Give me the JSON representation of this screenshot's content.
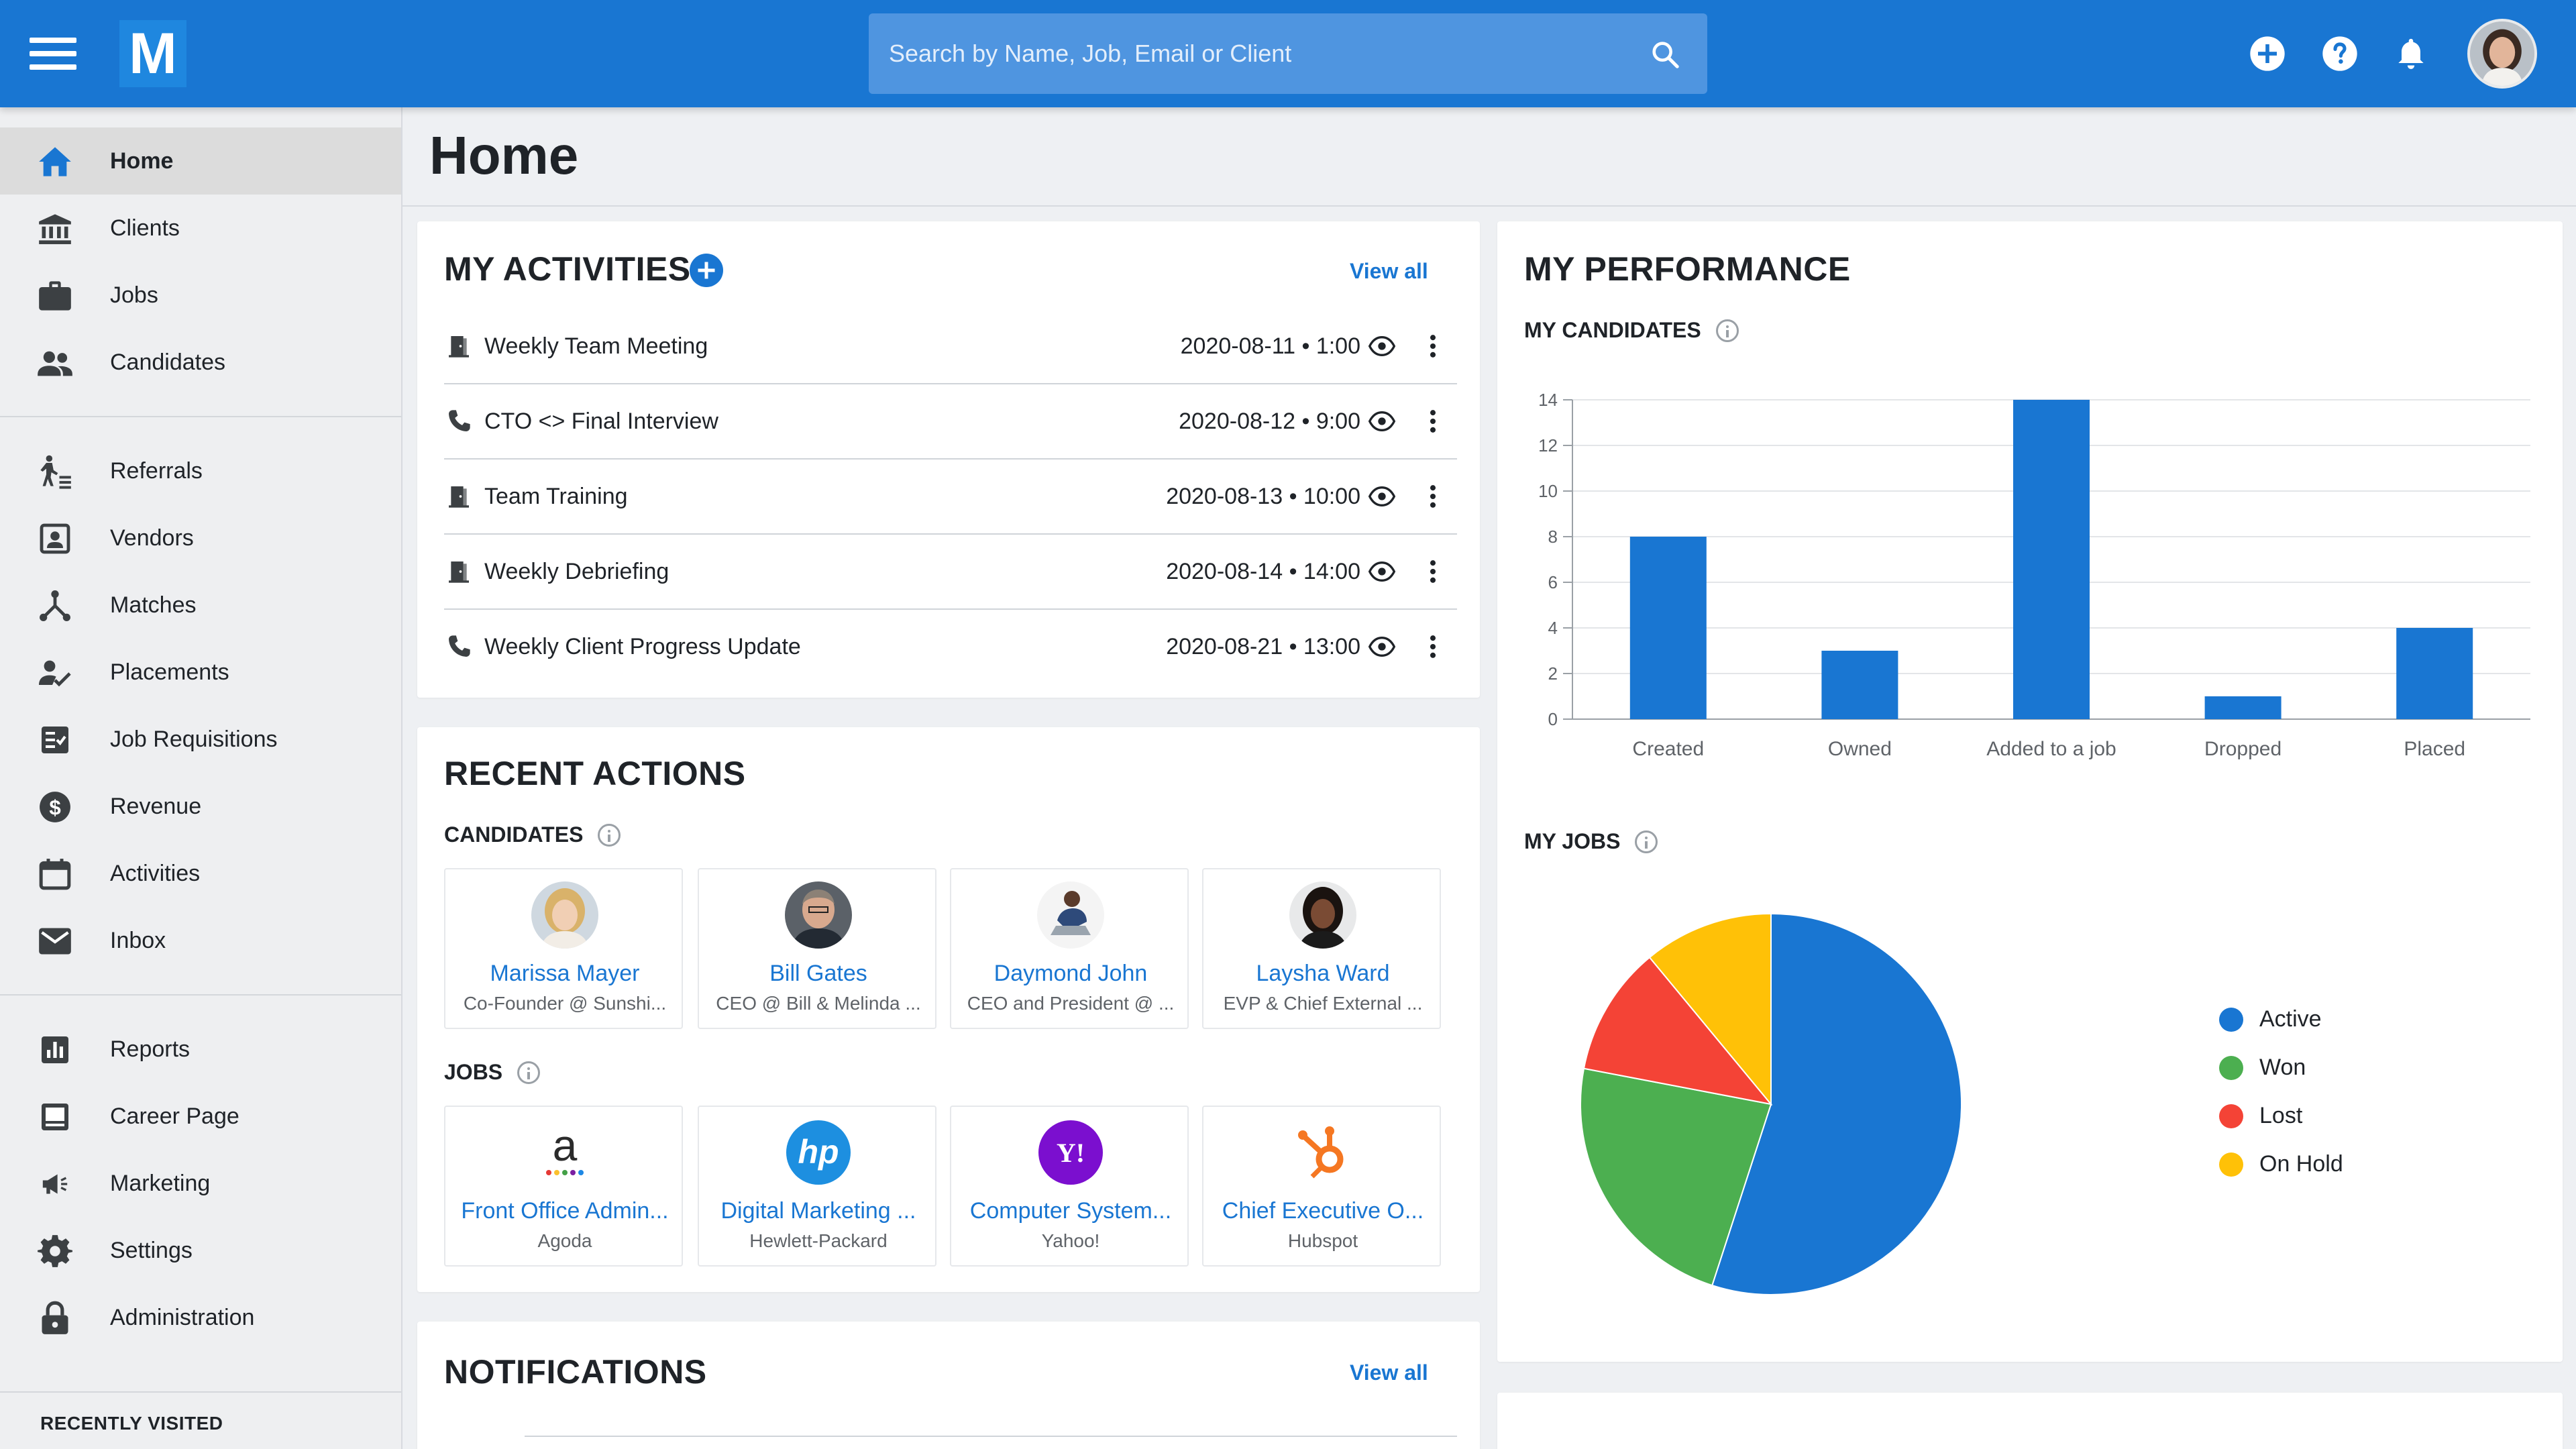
{
  "header": {
    "logo_letter": "M",
    "search_placeholder": "Search by Name, Job, Email or Client"
  },
  "sidebar": {
    "items": [
      {
        "label": "Home",
        "icon": "home-icon"
      },
      {
        "label": "Clients",
        "icon": "bank-icon"
      },
      {
        "label": "Jobs",
        "icon": "briefcase-icon"
      },
      {
        "label": "Candidates",
        "icon": "people-icon"
      },
      {
        "label": "Referrals",
        "icon": "referral-icon"
      },
      {
        "label": "Vendors",
        "icon": "vendor-icon"
      },
      {
        "label": "Matches",
        "icon": "matches-icon"
      },
      {
        "label": "Placements",
        "icon": "placement-icon"
      },
      {
        "label": "Job Requisitions",
        "icon": "requisition-icon"
      },
      {
        "label": "Revenue",
        "icon": "dollar-icon"
      },
      {
        "label": "Activities",
        "icon": "calendar-icon"
      },
      {
        "label": "Inbox",
        "icon": "mail-icon"
      },
      {
        "label": "Reports",
        "icon": "reports-icon"
      },
      {
        "label": "Career Page",
        "icon": "career-page-icon"
      },
      {
        "label": "Marketing",
        "icon": "megaphone-icon"
      },
      {
        "label": "Settings",
        "icon": "gear-icon"
      },
      {
        "label": "Administration",
        "icon": "lock-icon"
      }
    ],
    "recently_visited": "RECENTLY VISITED"
  },
  "page": {
    "title": "Home"
  },
  "activities": {
    "title": "MY ACTIVITIES",
    "view_all": "View all",
    "rows": [
      {
        "name": "Weekly Team Meeting",
        "date": "2020-08-11 • 1:00",
        "type": "meeting"
      },
      {
        "name": "CTO <> Final Interview",
        "date": "2020-08-12 • 9:00",
        "type": "call"
      },
      {
        "name": "Team Training",
        "date": "2020-08-13 • 10:00",
        "type": "meeting"
      },
      {
        "name": "Weekly Debriefing",
        "date": "2020-08-14 • 14:00",
        "type": "meeting"
      },
      {
        "name": "Weekly Client Progress Update",
        "date": "2020-08-21 • 13:00",
        "type": "call"
      }
    ]
  },
  "recent_actions": {
    "title": "RECENT ACTIONS",
    "candidates_label": "CANDIDATES",
    "jobs_label": "JOBS",
    "candidates": [
      {
        "name": "Marissa Mayer",
        "sub": "Co-Founder @ Sunshi..."
      },
      {
        "name": "Bill Gates",
        "sub": "CEO @ Bill & Melinda ..."
      },
      {
        "name": "Daymond John",
        "sub": "CEO and President @ ..."
      },
      {
        "name": "Laysha Ward",
        "sub": "EVP & Chief External ..."
      }
    ],
    "jobs": [
      {
        "name": "Front Office Admin...",
        "sub": "Agoda",
        "logo": "agoda-logo"
      },
      {
        "name": "Digital Marketing ...",
        "sub": "Hewlett-Packard",
        "logo": "hp-logo"
      },
      {
        "name": "Computer System...",
        "sub": "Yahoo!",
        "logo": "yahoo-logo"
      },
      {
        "name": "Chief Executive O...",
        "sub": "Hubspot",
        "logo": "hubspot-logo"
      }
    ]
  },
  "notifications": {
    "title": "NOTIFICATIONS",
    "view_all": "View all"
  },
  "performance": {
    "title": "MY PERFORMANCE",
    "candidates_label": "MY CANDIDATES",
    "jobs_label": "MY JOBS"
  },
  "chart_data": [
    {
      "type": "bar",
      "categories": [
        "Created",
        "Owned",
        "Added to a job",
        "Dropped",
        "Placed"
      ],
      "values": [
        8,
        3,
        14,
        1,
        4
      ],
      "ylim": [
        0,
        14
      ],
      "yticks": [
        0,
        2,
        4,
        6,
        8,
        10,
        12,
        14
      ],
      "grid": true,
      "color": "#1976d2"
    },
    {
      "type": "pie",
      "labels": [
        "Active",
        "Won",
        "Lost",
        "On Hold"
      ],
      "values": [
        55,
        23,
        11,
        11
      ],
      "colors": [
        "#1976d2",
        "#4caf50",
        "#f44336",
        "#ffc107"
      ],
      "legend": "right"
    }
  ]
}
